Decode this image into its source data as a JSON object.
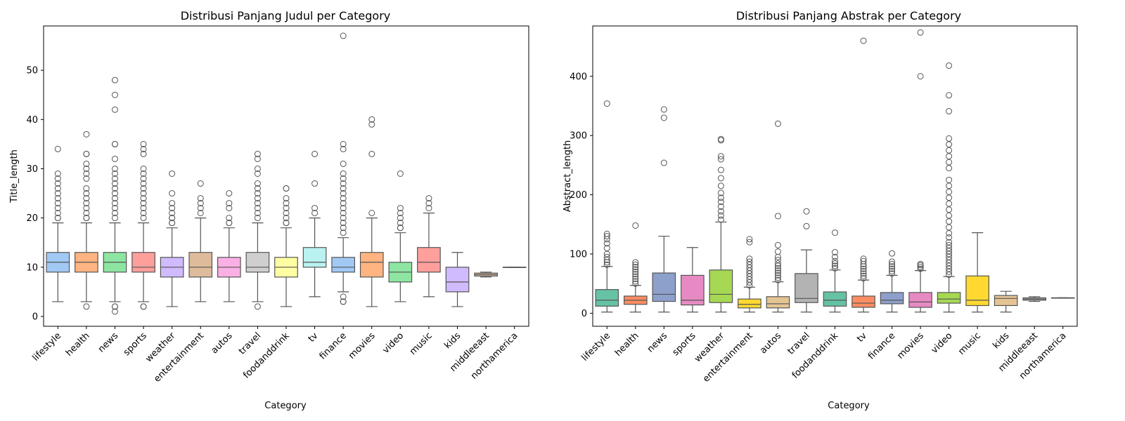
{
  "chart_data": [
    {
      "type": "box",
      "title": "Distribusi Panjang Judul per Category",
      "xlabel": "Category",
      "ylabel": "Title_length",
      "ylim": [
        -2,
        59
      ],
      "yticks": [
        0,
        10,
        20,
        30,
        40,
        50
      ],
      "categories": [
        "lifestyle",
        "health",
        "news",
        "sports",
        "weather",
        "entertainment",
        "autos",
        "travel",
        "foodanddrink",
        "tv",
        "finance",
        "movies",
        "video",
        "music",
        "kids",
        "middleeast",
        "northamerica"
      ],
      "colors": [
        "#a1c9f4",
        "#ffb482",
        "#8de5a1",
        "#ff9f9b",
        "#d0bbff",
        "#debb9b",
        "#fab0e4",
        "#cfcfcf",
        "#fffea3",
        "#b9f2f0",
        "#a1c9f4",
        "#ffb482",
        "#8de5a1",
        "#ff9f9b",
        "#d0bbff",
        "#debb9b",
        "#fab0e4"
      ],
      "stats": [
        {
          "whislo": 3,
          "q1": 9,
          "med": 11,
          "q3": 13,
          "whishi": 19,
          "fliers": [
            20,
            20,
            21,
            22,
            23,
            24,
            25,
            26,
            27,
            28,
            29,
            34
          ]
        },
        {
          "whislo": 3,
          "q1": 9,
          "med": 11,
          "q3": 13,
          "whishi": 19,
          "fliers": [
            2,
            20,
            20,
            21,
            22,
            23,
            24,
            25,
            26,
            28,
            29,
            30,
            31,
            33,
            33,
            37
          ]
        },
        {
          "whislo": 3,
          "q1": 9,
          "med": 11,
          "q3": 13,
          "whishi": 19,
          "fliers": [
            1,
            2,
            2,
            20,
            21,
            22,
            23,
            24,
            25,
            26,
            27,
            28,
            29,
            30,
            32,
            35,
            35,
            42,
            45,
            48
          ]
        },
        {
          "whislo": 3,
          "q1": 9,
          "med": 10,
          "q3": 13,
          "whishi": 19,
          "fliers": [
            2,
            2,
            20,
            21,
            22,
            23,
            24,
            25,
            26,
            27,
            28,
            29,
            30,
            33,
            34,
            35
          ]
        },
        {
          "whislo": 2,
          "q1": 8,
          "med": 10,
          "q3": 12,
          "whishi": 18,
          "fliers": [
            19,
            19,
            20,
            20,
            21,
            22,
            23,
            25,
            29
          ]
        },
        {
          "whislo": 3,
          "q1": 8,
          "med": 10,
          "q3": 13,
          "whishi": 20,
          "fliers": [
            21,
            22,
            23,
            24,
            27
          ]
        },
        {
          "whislo": 3,
          "q1": 8,
          "med": 10,
          "q3": 12,
          "whishi": 18,
          "fliers": [
            19,
            19,
            20,
            22,
            23,
            25
          ]
        },
        {
          "whislo": 3,
          "q1": 9,
          "med": 10,
          "q3": 13,
          "whishi": 19,
          "fliers": [
            2,
            20,
            21,
            22,
            23,
            24,
            25,
            26,
            27,
            29,
            30,
            32,
            33
          ]
        },
        {
          "whislo": 2,
          "q1": 8,
          "med": 10,
          "q3": 12,
          "whishi": 18,
          "fliers": [
            19,
            19,
            20,
            21,
            22,
            23,
            24,
            26,
            26
          ]
        },
        {
          "whislo": 4,
          "q1": 10,
          "med": 11,
          "q3": 14,
          "whishi": 20,
          "fliers": [
            21,
            22,
            27,
            33
          ]
        },
        {
          "whislo": 5,
          "q1": 9,
          "med": 10,
          "q3": 12,
          "whishi": 16,
          "fliers": [
            3,
            3,
            4,
            17,
            18,
            19,
            20,
            21,
            22,
            23,
            24,
            25,
            26,
            27,
            28,
            29,
            31,
            34,
            35,
            57
          ]
        },
        {
          "whislo": 2,
          "q1": 8,
          "med": 11,
          "q3": 13,
          "whishi": 20,
          "fliers": [
            21,
            33,
            39,
            40
          ]
        },
        {
          "whislo": 3,
          "q1": 7,
          "med": 9,
          "q3": 11,
          "whishi": 17,
          "fliers": [
            18,
            18,
            19,
            20,
            21,
            22,
            29
          ]
        },
        {
          "whislo": 4,
          "q1": 9,
          "med": 11,
          "q3": 14,
          "whishi": 21,
          "fliers": [
            22,
            23,
            24
          ]
        },
        {
          "whislo": 2,
          "q1": 5,
          "med": 7,
          "q3": 10,
          "whishi": 13,
          "fliers": []
        },
        {
          "whislo": 8,
          "q1": 8.2,
          "med": 8.5,
          "q3": 8.8,
          "whishi": 9,
          "fliers": []
        },
        {
          "whislo": 10,
          "q1": 10,
          "med": 10,
          "q3": 10,
          "whishi": 10,
          "fliers": []
        }
      ]
    },
    {
      "type": "box",
      "title": "Distribusi Panjang Abstrak per Category",
      "xlabel": "Category",
      "ylabel": "Abstract_length",
      "ylim": [
        -22,
        485
      ],
      "yticks": [
        0,
        100,
        200,
        300,
        400
      ],
      "categories": [
        "lifestyle",
        "health",
        "news",
        "sports",
        "weather",
        "entertainment",
        "autos",
        "travel",
        "foodanddrink",
        "tv",
        "finance",
        "movies",
        "video",
        "music",
        "kids",
        "middleeast",
        "northamerica"
      ],
      "colors": [
        "#66c2a5",
        "#fc8d62",
        "#8da0cb",
        "#e78ac3",
        "#a6d854",
        "#ffd92f",
        "#e5c494",
        "#b3b3b3",
        "#66c2a5",
        "#fc8d62",
        "#8da0cb",
        "#e78ac3",
        "#a6d854",
        "#ffd92f",
        "#e5c494",
        "#b3b3b3",
        "#66c2a5"
      ],
      "stats": [
        {
          "whislo": 2,
          "q1": 12,
          "med": 22,
          "q3": 40,
          "whishi": 79,
          "fliers": [
            82,
            86,
            90,
            95,
            100,
            110,
            118,
            125,
            130,
            134,
            354
          ]
        },
        {
          "whislo": 2,
          "q1": 15,
          "med": 22,
          "q3": 29,
          "whishi": 47,
          "fliers": [
            50,
            54,
            58,
            62,
            66,
            70,
            74,
            78,
            82,
            86,
            148
          ]
        },
        {
          "whislo": 2,
          "q1": 20,
          "med": 32,
          "q3": 68,
          "whishi": 130,
          "fliers": [
            254,
            330,
            344
          ]
        },
        {
          "whislo": 2,
          "q1": 14,
          "med": 22,
          "q3": 64,
          "whishi": 111,
          "fliers": []
        },
        {
          "whislo": 2,
          "q1": 18,
          "med": 32,
          "q3": 73,
          "whishi": 154,
          "fliers": [
            158,
            165,
            172,
            180,
            188,
            195,
            203,
            215,
            228,
            242,
            260,
            265,
            292,
            294
          ]
        },
        {
          "whislo": 2,
          "q1": 9,
          "med": 15,
          "q3": 24,
          "whishi": 44,
          "fliers": [
            47,
            52,
            57,
            62,
            67,
            72,
            77,
            82,
            87,
            92,
            120,
            125
          ]
        },
        {
          "whislo": 2,
          "q1": 9,
          "med": 16,
          "q3": 28,
          "whishi": 53,
          "fliers": [
            56,
            60,
            64,
            68,
            72,
            76,
            80,
            84,
            90,
            95,
            104,
            115,
            164,
            320
          ]
        },
        {
          "whislo": 2,
          "q1": 18,
          "med": 25,
          "q3": 67,
          "whishi": 107,
          "fliers": [
            147,
            172
          ]
        },
        {
          "whislo": 2,
          "q1": 12,
          "med": 22,
          "q3": 36,
          "whishi": 73,
          "fliers": [
            76,
            80,
            84,
            88,
            95,
            103,
            136
          ]
        },
        {
          "whislo": 2,
          "q1": 10,
          "med": 17,
          "q3": 29,
          "whishi": 56,
          "fliers": [
            59,
            63,
            67,
            71,
            75,
            79,
            83,
            88,
            92,
            460
          ]
        },
        {
          "whislo": 2,
          "q1": 16,
          "med": 22,
          "q3": 35,
          "whishi": 64,
          "fliers": [
            67,
            71,
            75,
            79,
            83,
            87,
            101
          ]
        },
        {
          "whislo": 2,
          "q1": 10,
          "med": 19,
          "q3": 35,
          "whishi": 72,
          "fliers": [
            75,
            78,
            81,
            83,
            400,
            474
          ]
        },
        {
          "whislo": 2,
          "q1": 17,
          "med": 24,
          "q3": 35,
          "whishi": 62,
          "fliers": [
            65,
            70,
            75,
            80,
            85,
            90,
            95,
            100,
            105,
            110,
            115,
            120,
            128,
            135,
            145,
            155,
            165,
            175,
            185,
            195,
            205,
            215,
            225,
            245,
            255,
            265,
            275,
            285,
            295,
            341,
            368,
            418
          ]
        },
        {
          "whislo": 2,
          "q1": 13,
          "med": 22,
          "q3": 63,
          "whishi": 136,
          "fliers": []
        },
        {
          "whislo": 2,
          "q1": 13,
          "med": 25,
          "q3": 30,
          "whishi": 37,
          "fliers": []
        },
        {
          "whislo": 20,
          "q1": 22,
          "med": 24,
          "q3": 26,
          "whishi": 28,
          "fliers": []
        },
        {
          "whislo": 26,
          "q1": 26,
          "med": 26,
          "q3": 26,
          "whishi": 26,
          "fliers": []
        }
      ]
    }
  ]
}
